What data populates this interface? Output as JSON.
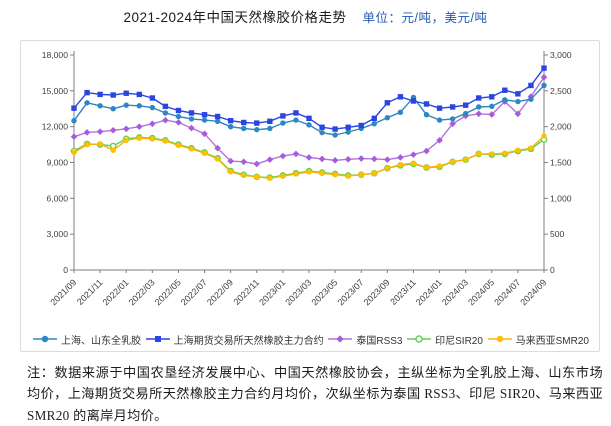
{
  "title": "2021-2024年中国天然橡胶价格走势",
  "unit_label": "单位：元/吨，美元/吨",
  "note": "注：数据来源于中国农垦经济发展中心、中国天然橡胶协会，主纵坐标为全乳胶上海、山东市场均价，上海期货交易所天然橡胶主力合约月均价，次纵坐标为泰国 RSS3、印尼 SIR20、马来西亚 SMR20 的离岸月均价。",
  "chart_data": {
    "type": "line",
    "title": "2021-2024年中国天然橡胶价格走势",
    "grid": false,
    "legend_position": "bottom",
    "x": [
      "2021/09",
      "2021/10",
      "2021/11",
      "2021/12",
      "2022/01",
      "2022/02",
      "2022/03",
      "2022/04",
      "2022/05",
      "2022/06",
      "2022/07",
      "2022/08",
      "2022/09",
      "2022/10",
      "2022/11",
      "2022/12",
      "2023/01",
      "2023/02",
      "2023/03",
      "2023/04",
      "2023/05",
      "2023/06",
      "2023/07",
      "2023/08",
      "2023/09",
      "2023/10",
      "2023/11",
      "2023/12",
      "2024/01",
      "2024/02",
      "2024/03",
      "2024/04",
      "2024/05",
      "2024/06",
      "2024/07",
      "2024/08",
      "2024/09"
    ],
    "x_tick_labels": [
      "2021/09",
      "2021/11",
      "2022/01",
      "2022/03",
      "2022/05",
      "2022/07",
      "2022/09",
      "2022/11",
      "2023/01",
      "2023/03",
      "2023/05",
      "2023/07",
      "2023/09",
      "2023/11",
      "2024/01",
      "2024/03",
      "2024/05",
      "2024/07",
      "2024/09"
    ],
    "left_axis": {
      "unit": "元/吨",
      "min": 0,
      "max": 18000,
      "step": 3000,
      "tick_labels": [
        "0",
        "3,000",
        "6,000",
        "9,000",
        "12,000",
        "15,000",
        "18,000"
      ]
    },
    "right_axis": {
      "unit": "美元/吨",
      "min": 0,
      "max": 3000,
      "step": 500,
      "tick_labels": [
        "0",
        "500",
        "1,000",
        "1,500",
        "2,000",
        "2,500",
        "3,000"
      ]
    },
    "series": [
      {
        "name": "上海、山东全乳胶",
        "axis": "left",
        "marker": "circle",
        "color": "#2e86c4",
        "line_color": "#2e86c4",
        "values": [
          12500,
          14000,
          13750,
          13500,
          13800,
          13750,
          13600,
          13150,
          12850,
          12650,
          12550,
          12450,
          12000,
          11850,
          11750,
          11850,
          12300,
          12550,
          12150,
          11500,
          11300,
          11550,
          11850,
          12250,
          12750,
          13200,
          14450,
          13000,
          12550,
          12650,
          13100,
          13650,
          13700,
          14250,
          14100,
          14300,
          15450
        ]
      },
      {
        "name": "上海期货交易所天然橡胶主力合约",
        "axis": "left",
        "marker": "square",
        "color": "#2a46e0",
        "line_color": "#2a46e0",
        "values": [
          13550,
          14850,
          14700,
          14650,
          14800,
          14700,
          14400,
          13700,
          13350,
          13150,
          13000,
          12850,
          12500,
          12350,
          12300,
          12450,
          12900,
          13150,
          12700,
          11950,
          11800,
          11950,
          12100,
          12700,
          14000,
          14500,
          14150,
          13900,
          13550,
          13650,
          13800,
          14400,
          14500,
          15050,
          14750,
          15450,
          16900
        ]
      },
      {
        "name": "泰国RSS3",
        "axis": "right",
        "marker": "diamond",
        "color": "#a85cd8",
        "line_color": "#b273dc",
        "values": [
          1860,
          1920,
          1930,
          1950,
          1970,
          2000,
          2040,
          2090,
          2060,
          1980,
          1900,
          1700,
          1520,
          1510,
          1480,
          1540,
          1590,
          1620,
          1570,
          1550,
          1530,
          1545,
          1555,
          1550,
          1540,
          1570,
          1610,
          1660,
          1810,
          2040,
          2150,
          2180,
          2170,
          2350,
          2180,
          2420,
          2690
        ]
      },
      {
        "name": "印尼SIR20",
        "axis": "right",
        "marker": "open-circle",
        "color": "#5ed058",
        "line_color": "#5ed058",
        "values": [
          1660,
          1760,
          1750,
          1730,
          1830,
          1850,
          1840,
          1810,
          1750,
          1700,
          1640,
          1560,
          1380,
          1330,
          1300,
          1290,
          1320,
          1350,
          1380,
          1360,
          1340,
          1320,
          1330,
          1350,
          1420,
          1460,
          1480,
          1430,
          1440,
          1510,
          1540,
          1620,
          1610,
          1620,
          1660,
          1690,
          1820
        ]
      },
      {
        "name": "马来西亚SMR20",
        "axis": "right",
        "marker": "circle",
        "color": "#ffc000",
        "line_color": "#ffb000",
        "values": [
          1640,
          1750,
          1760,
          1670,
          1810,
          1840,
          1830,
          1800,
          1740,
          1690,
          1630,
          1550,
          1370,
          1320,
          1300,
          1280,
          1310,
          1340,
          1370,
          1350,
          1330,
          1310,
          1330,
          1350,
          1420,
          1470,
          1490,
          1430,
          1450,
          1510,
          1540,
          1620,
          1620,
          1630,
          1670,
          1700,
          1870
        ]
      }
    ]
  }
}
